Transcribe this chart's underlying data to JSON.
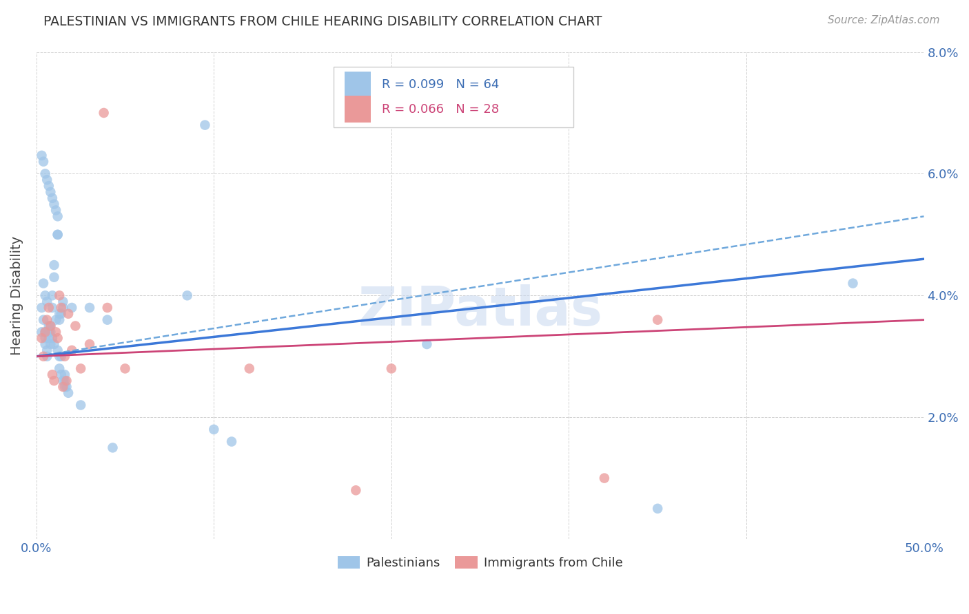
{
  "title": "PALESTINIAN VS IMMIGRANTS FROM CHILE HEARING DISABILITY CORRELATION CHART",
  "source": "Source: ZipAtlas.com",
  "ylabel": "Hearing Disability",
  "xlim": [
    0,
    0.5
  ],
  "ylim": [
    0,
    0.08
  ],
  "xticks": [
    0.0,
    0.1,
    0.2,
    0.3,
    0.4,
    0.5
  ],
  "yticks": [
    0.0,
    0.02,
    0.04,
    0.06,
    0.08
  ],
  "xtick_labels_shown": {
    "0.0": "0.0%",
    "0.5": "50.0%"
  },
  "ytick_labels": [
    "",
    "2.0%",
    "4.0%",
    "6.0%",
    "8.0%"
  ],
  "blue_R": "R = 0.099",
  "blue_N": "N = 64",
  "pink_R": "R = 0.066",
  "pink_N": "N = 28",
  "blue_color": "#9fc5e8",
  "pink_color": "#ea9999",
  "blue_line_color": "#3c78d8",
  "pink_line_color": "#cc4477",
  "dashed_line_color": "#6fa8dc",
  "legend_label_blue": "Palestinians",
  "legend_label_pink": "Immigrants from Chile",
  "blue_x": [
    0.003,
    0.003,
    0.004,
    0.005,
    0.005,
    0.005,
    0.006,
    0.006,
    0.007,
    0.007,
    0.008,
    0.008,
    0.009,
    0.009,
    0.01,
    0.01,
    0.011,
    0.012,
    0.012,
    0.013,
    0.013,
    0.014,
    0.015,
    0.015,
    0.016,
    0.016,
    0.017,
    0.018,
    0.003,
    0.004,
    0.005,
    0.006,
    0.007,
    0.008,
    0.009,
    0.01,
    0.011,
    0.012,
    0.013,
    0.014,
    0.015,
    0.016,
    0.004,
    0.005,
    0.006,
    0.007,
    0.008,
    0.009,
    0.01,
    0.012,
    0.013,
    0.014,
    0.02,
    0.025,
    0.03,
    0.04,
    0.043,
    0.085,
    0.095,
    0.1,
    0.11,
    0.22,
    0.35,
    0.46
  ],
  "blue_y": [
    0.034,
    0.038,
    0.036,
    0.034,
    0.033,
    0.032,
    0.031,
    0.03,
    0.033,
    0.034,
    0.035,
    0.032,
    0.04,
    0.038,
    0.045,
    0.043,
    0.036,
    0.05,
    0.05,
    0.037,
    0.036,
    0.037,
    0.038,
    0.039,
    0.027,
    0.026,
    0.025,
    0.024,
    0.063,
    0.062,
    0.06,
    0.059,
    0.058,
    0.057,
    0.056,
    0.055,
    0.054,
    0.053,
    0.028,
    0.027,
    0.026,
    0.025,
    0.042,
    0.04,
    0.039,
    0.035,
    0.034,
    0.033,
    0.032,
    0.031,
    0.03,
    0.03,
    0.038,
    0.022,
    0.038,
    0.036,
    0.015,
    0.04,
    0.068,
    0.018,
    0.016,
    0.032,
    0.005,
    0.042
  ],
  "pink_x": [
    0.003,
    0.004,
    0.005,
    0.006,
    0.007,
    0.008,
    0.009,
    0.01,
    0.011,
    0.012,
    0.013,
    0.014,
    0.015,
    0.016,
    0.017,
    0.018,
    0.02,
    0.022,
    0.025,
    0.03,
    0.038,
    0.04,
    0.05,
    0.12,
    0.18,
    0.2,
    0.32,
    0.35
  ],
  "pink_y": [
    0.033,
    0.03,
    0.034,
    0.036,
    0.038,
    0.035,
    0.027,
    0.026,
    0.034,
    0.033,
    0.04,
    0.038,
    0.025,
    0.03,
    0.026,
    0.037,
    0.031,
    0.035,
    0.028,
    0.032,
    0.07,
    0.038,
    0.028,
    0.028,
    0.008,
    0.028,
    0.01,
    0.036
  ],
  "blue_trend_x": [
    0.0,
    0.5
  ],
  "blue_trend_y": [
    0.03,
    0.046
  ],
  "pink_trend_x": [
    0.0,
    0.5
  ],
  "pink_trend_y": [
    0.03,
    0.036
  ],
  "dashed_trend_x": [
    0.0,
    0.5
  ],
  "dashed_trend_y": [
    0.03,
    0.053
  ]
}
